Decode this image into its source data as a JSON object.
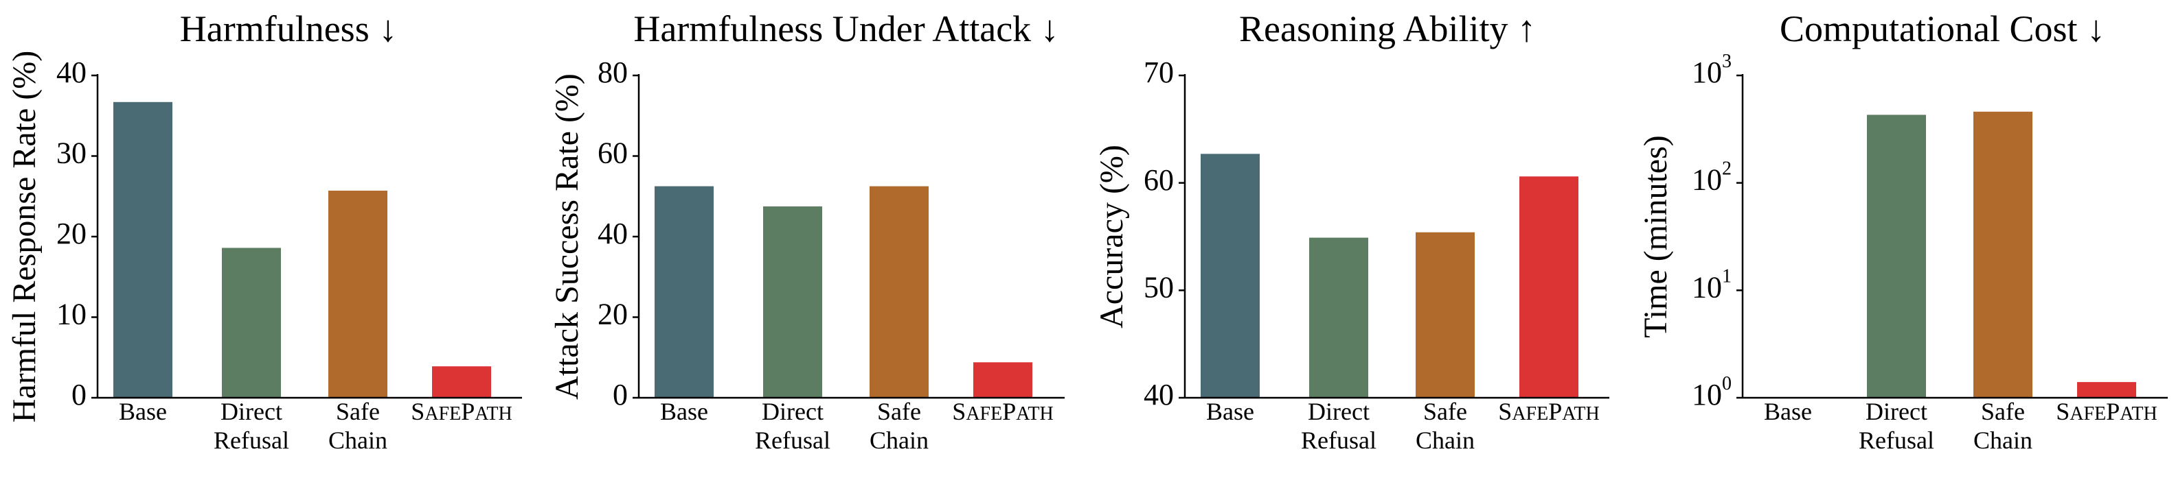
{
  "colors": {
    "Base": "#4a6b74",
    "Direct Refusal": "#5c7d61",
    "Safe Chain": "#b06a2c",
    "SafePath": "#dc3434"
  },
  "chart_data": [
    {
      "type": "bar",
      "title": "Harmfulness ↓",
      "ylabel": "Harmful Response Rate (%)",
      "categories": [
        "Base",
        "Direct Refusal",
        "Safe Chain",
        "SafePath"
      ],
      "values": [
        36.7,
        18.6,
        25.7,
        3.9
      ],
      "ylim": [
        0,
        40
      ],
      "yticks": [
        "0",
        "10",
        "20",
        "30",
        "40"
      ],
      "yscale": "linear",
      "grid": false,
      "legend": "none"
    },
    {
      "type": "bar",
      "title": "Harmfulness Under Attack ↓",
      "ylabel": "Attack Success Rate (%)",
      "categories": [
        "Base",
        "Direct Refusal",
        "Safe Chain",
        "SafePath"
      ],
      "values": [
        52.5,
        47.5,
        52.5,
        8.8
      ],
      "ylim": [
        0,
        80
      ],
      "yticks": [
        "0",
        "20",
        "40",
        "60",
        "80"
      ],
      "yscale": "linear",
      "grid": false,
      "legend": "none"
    },
    {
      "type": "bar",
      "title": "Reasoning Ability ↑",
      "ylabel": "Accuracy (%)",
      "categories": [
        "Base",
        "Direct Refusal",
        "Safe Chain",
        "SafePath"
      ],
      "values": [
        62.7,
        54.9,
        55.4,
        60.6
      ],
      "ylim": [
        40,
        70
      ],
      "yticks": [
        "40",
        "50",
        "60",
        "70"
      ],
      "yscale": "linear",
      "grid": false,
      "legend": "none"
    },
    {
      "type": "bar",
      "title": "Computational Cost ↓",
      "ylabel": "Time (minutes)",
      "categories": [
        "Base",
        "Direct Refusal",
        "Safe Chain",
        "SafePath"
      ],
      "values": [
        0,
        430,
        460,
        1.4
      ],
      "ylim": [
        1,
        1000
      ],
      "yticks": [
        "10^0",
        "10^1",
        "10^2",
        "10^3"
      ],
      "yscale": "log",
      "grid": false,
      "legend": "none"
    }
  ]
}
